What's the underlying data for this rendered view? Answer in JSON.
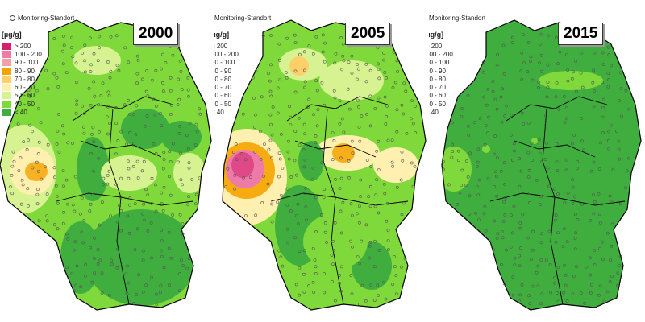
{
  "legend": {
    "monitoring_label": "Monitoring-Standort",
    "unit_label": "[µg/g]",
    "unit_label_zn": "Zn [µg/g]",
    "classes": [
      {
        "label": "> 200",
        "color": "#d6206b"
      },
      {
        "label": "100 - 200",
        "color": "#ee7aa8"
      },
      {
        "label": "90 - 100",
        "color": "#f2a0a8"
      },
      {
        "label": "80 - 90",
        "color": "#f5a300"
      },
      {
        "label": "70 - 80",
        "color": "#ffd06a"
      },
      {
        "label": "60 - 70",
        "color": "#fff0b0"
      },
      {
        "label": "50 - 60",
        "color": "#d7f290"
      },
      {
        "label": "40 - 50",
        "color": "#7fd93a"
      },
      {
        "label": "< 40",
        "color": "#3fae3f"
      }
    ]
  },
  "panels": [
    {
      "year": "2000"
    },
    {
      "year": "2005"
    },
    {
      "year": "2015"
    }
  ]
}
